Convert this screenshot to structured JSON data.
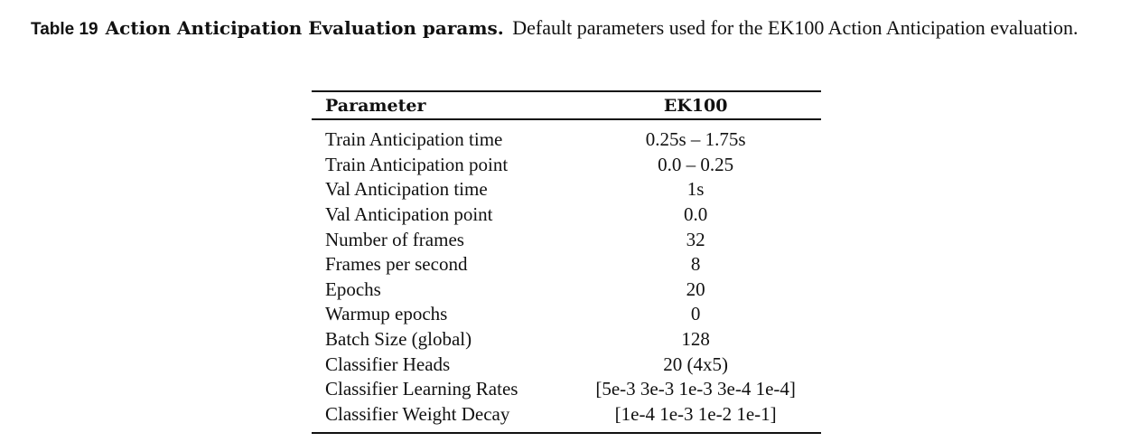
{
  "caption": {
    "label": "Table 19",
    "title": "Action Anticipation Evaluation params.",
    "text": "Default parameters used for the EK100 Action Anticipation evaluation."
  },
  "table": {
    "headers": [
      "Parameter",
      "EK100"
    ],
    "rows": [
      [
        "Train Anticipation time",
        "0.25s – 1.75s"
      ],
      [
        "Train Anticipation point",
        "0.0 – 0.25"
      ],
      [
        "Val Anticipation time",
        "1s"
      ],
      [
        "Val Anticipation point",
        "0.0"
      ],
      [
        "Number of frames",
        "32"
      ],
      [
        "Frames per second",
        "8"
      ],
      [
        "Epochs",
        "20"
      ],
      [
        "Warmup epochs",
        "0"
      ],
      [
        "Batch Size (global)",
        "128"
      ],
      [
        "Classifier Heads",
        "20 (4x5)"
      ],
      [
        "Classifier Learning Rates",
        "[5e-3 3e-3 1e-3 3e-4 1e-4]"
      ],
      [
        "Classifier Weight Decay",
        "[1e-4 1e-3 1e-2 1e-1]"
      ]
    ]
  }
}
